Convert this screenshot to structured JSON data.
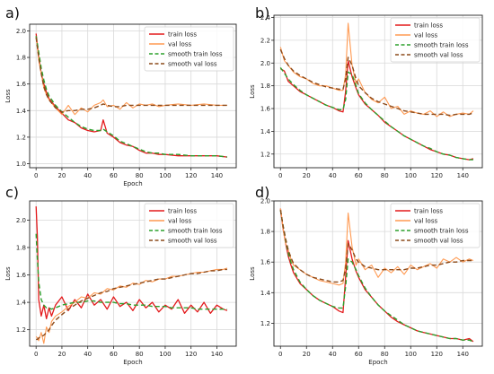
{
  "colors": {
    "train": "#e31a1c",
    "val": "#ff9a52",
    "smooth_train": "#2ca02c",
    "smooth_val": "#8c4a1a",
    "grid": "#d9d9d9",
    "axis": "#222222"
  },
  "chart_data": [
    {
      "type": "line",
      "panel_label": "a)",
      "title": "",
      "xlabel": "Epoch",
      "ylabel": "Loss",
      "xlim": [
        -5,
        155
      ],
      "ylim": [
        0.97,
        2.05
      ],
      "xticks": [
        "0",
        "20",
        "40",
        "60",
        "80",
        "100",
        "120",
        "140"
      ],
      "yticks": [
        "1.0",
        "1.2",
        "1.4",
        "1.6",
        "1.8",
        "2.0"
      ],
      "grid": true,
      "legend_position": "top-right",
      "legend": [
        "train loss",
        "val loss",
        "smooth train loss",
        "smooth val loss"
      ],
      "x": [
        0,
        2,
        4,
        6,
        8,
        10,
        15,
        20,
        25,
        30,
        35,
        40,
        45,
        50,
        52,
        55,
        60,
        65,
        70,
        75,
        80,
        85,
        90,
        95,
        100,
        110,
        120,
        130,
        140,
        148
      ],
      "series": [
        {
          "name": "train loss",
          "style": "solid",
          "values": [
            1.98,
            1.8,
            1.68,
            1.6,
            1.54,
            1.49,
            1.43,
            1.38,
            1.33,
            1.31,
            1.27,
            1.25,
            1.24,
            1.25,
            1.33,
            1.23,
            1.2,
            1.16,
            1.14,
            1.13,
            1.1,
            1.08,
            1.08,
            1.07,
            1.07,
            1.06,
            1.06,
            1.06,
            1.06,
            1.05
          ]
        },
        {
          "name": "val loss",
          "style": "solid",
          "values": [
            1.96,
            1.78,
            1.68,
            1.57,
            1.52,
            1.48,
            1.42,
            1.37,
            1.44,
            1.37,
            1.42,
            1.39,
            1.44,
            1.46,
            1.48,
            1.43,
            1.44,
            1.41,
            1.46,
            1.42,
            1.45,
            1.44,
            1.45,
            1.43,
            1.44,
            1.45,
            1.44,
            1.45,
            1.44,
            1.44
          ]
        },
        {
          "name": "smooth train loss",
          "style": "dashed",
          "values": [
            1.96,
            1.84,
            1.72,
            1.63,
            1.56,
            1.51,
            1.44,
            1.39,
            1.35,
            1.31,
            1.28,
            1.26,
            1.25,
            1.25,
            1.26,
            1.24,
            1.21,
            1.17,
            1.15,
            1.13,
            1.11,
            1.09,
            1.08,
            1.08,
            1.07,
            1.07,
            1.06,
            1.06,
            1.06,
            1.05
          ]
        },
        {
          "name": "smooth val loss",
          "style": "dashed",
          "values": [
            1.95,
            1.8,
            1.68,
            1.58,
            1.52,
            1.48,
            1.42,
            1.39,
            1.4,
            1.4,
            1.41,
            1.41,
            1.42,
            1.44,
            1.45,
            1.44,
            1.43,
            1.43,
            1.44,
            1.44,
            1.44,
            1.44,
            1.44,
            1.44,
            1.44,
            1.44,
            1.44,
            1.44,
            1.44,
            1.44
          ]
        }
      ]
    },
    {
      "type": "line",
      "panel_label": "b)",
      "title": "",
      "xlabel": "",
      "ylabel": "Loss",
      "xlim": [
        -5,
        155
      ],
      "ylim": [
        1.08,
        2.42
      ],
      "xticks": [
        "0",
        "20",
        "40",
        "60",
        "80",
        "100",
        "120",
        "140"
      ],
      "yticks": [
        "1.2",
        "1.4",
        "1.6",
        "1.8",
        "2.0",
        "2.2",
        "2.4"
      ],
      "grid": true,
      "legend_position": "top-right",
      "legend": [
        "train loss",
        "val loss",
        "smooth train loss",
        "smooth val loss"
      ],
      "x": [
        0,
        3,
        6,
        10,
        15,
        20,
        25,
        30,
        35,
        40,
        45,
        48,
        50,
        52,
        55,
        58,
        60,
        65,
        70,
        75,
        80,
        85,
        90,
        95,
        100,
        105,
        110,
        115,
        120,
        125,
        130,
        135,
        140,
        145,
        148
      ],
      "series": [
        {
          "name": "train loss",
          "style": "solid",
          "values": [
            1.95,
            1.93,
            1.84,
            1.8,
            1.75,
            1.72,
            1.69,
            1.66,
            1.63,
            1.61,
            1.58,
            1.57,
            1.75,
            2.02,
            1.88,
            1.78,
            1.72,
            1.64,
            1.59,
            1.54,
            1.48,
            1.44,
            1.4,
            1.36,
            1.33,
            1.3,
            1.27,
            1.24,
            1.22,
            1.2,
            1.19,
            1.17,
            1.16,
            1.15,
            1.16
          ]
        },
        {
          "name": "val loss",
          "style": "solid",
          "values": [
            2.14,
            2.02,
            1.98,
            1.92,
            1.88,
            1.86,
            1.82,
            1.8,
            1.8,
            1.78,
            1.76,
            1.76,
            1.9,
            2.35,
            1.98,
            1.82,
            1.86,
            1.74,
            1.68,
            1.65,
            1.7,
            1.6,
            1.62,
            1.55,
            1.58,
            1.56,
            1.55,
            1.58,
            1.53,
            1.57,
            1.53,
            1.55,
            1.56,
            1.55,
            1.58
          ]
        },
        {
          "name": "smooth train loss",
          "style": "dashed",
          "values": [
            1.96,
            1.91,
            1.86,
            1.81,
            1.76,
            1.72,
            1.69,
            1.66,
            1.63,
            1.61,
            1.59,
            1.59,
            1.68,
            1.92,
            1.9,
            1.8,
            1.73,
            1.65,
            1.59,
            1.54,
            1.49,
            1.44,
            1.4,
            1.36,
            1.33,
            1.3,
            1.27,
            1.25,
            1.22,
            1.2,
            1.19,
            1.17,
            1.16,
            1.15,
            1.15
          ]
        },
        {
          "name": "smooth val loss",
          "style": "dashed",
          "values": [
            2.12,
            2.04,
            1.98,
            1.93,
            1.89,
            1.86,
            1.83,
            1.81,
            1.79,
            1.78,
            1.77,
            1.77,
            1.86,
            2.05,
            1.98,
            1.86,
            1.8,
            1.74,
            1.69,
            1.66,
            1.64,
            1.62,
            1.6,
            1.58,
            1.57,
            1.56,
            1.55,
            1.55,
            1.55,
            1.55,
            1.54,
            1.55,
            1.55,
            1.55,
            1.56
          ]
        }
      ]
    },
    {
      "type": "line",
      "panel_label": "c)",
      "title": "",
      "xlabel": "Epoch",
      "ylabel": "Loss",
      "xlim": [
        -5,
        155
      ],
      "ylim": [
        1.08,
        2.14
      ],
      "xticks": [
        "0",
        "20",
        "40",
        "60",
        "80",
        "100",
        "120",
        "140"
      ],
      "yticks": [
        "1.2",
        "1.4",
        "1.6",
        "1.8",
        "2.0"
      ],
      "grid": true,
      "legend_position": "top-right",
      "legend": [
        "train loss",
        "val loss",
        "smooth train loss",
        "smooth val loss"
      ],
      "x": [
        0,
        1,
        2,
        4,
        6,
        8,
        10,
        12,
        15,
        20,
        25,
        30,
        35,
        40,
        45,
        50,
        55,
        60,
        65,
        70,
        75,
        80,
        85,
        90,
        95,
        100,
        105,
        110,
        115,
        120,
        125,
        130,
        135,
        140,
        145,
        148
      ],
      "series": [
        {
          "name": "train loss",
          "style": "solid",
          "values": [
            2.1,
            1.88,
            1.42,
            1.3,
            1.38,
            1.28,
            1.36,
            1.3,
            1.38,
            1.44,
            1.34,
            1.42,
            1.36,
            1.46,
            1.38,
            1.42,
            1.35,
            1.44,
            1.37,
            1.4,
            1.34,
            1.42,
            1.36,
            1.4,
            1.33,
            1.38,
            1.35,
            1.42,
            1.32,
            1.38,
            1.33,
            1.4,
            1.32,
            1.38,
            1.35,
            1.34
          ]
        },
        {
          "name": "val loss",
          "style": "solid",
          "values": [
            1.15,
            1.14,
            1.12,
            1.18,
            1.1,
            1.22,
            1.18,
            1.26,
            1.3,
            1.33,
            1.37,
            1.4,
            1.44,
            1.43,
            1.47,
            1.46,
            1.5,
            1.49,
            1.52,
            1.51,
            1.54,
            1.53,
            1.56,
            1.55,
            1.57,
            1.57,
            1.59,
            1.59,
            1.6,
            1.61,
            1.62,
            1.62,
            1.63,
            1.64,
            1.64,
            1.65
          ]
        },
        {
          "name": "smooth train loss",
          "style": "dashed",
          "values": [
            1.9,
            1.72,
            1.55,
            1.42,
            1.38,
            1.36,
            1.36,
            1.35,
            1.36,
            1.38,
            1.39,
            1.4,
            1.4,
            1.41,
            1.41,
            1.4,
            1.4,
            1.4,
            1.39,
            1.39,
            1.38,
            1.38,
            1.38,
            1.37,
            1.37,
            1.37,
            1.36,
            1.36,
            1.36,
            1.36,
            1.35,
            1.35,
            1.35,
            1.35,
            1.35,
            1.35
          ]
        },
        {
          "name": "smooth val loss",
          "style": "dashed",
          "values": [
            1.13,
            1.13,
            1.14,
            1.15,
            1.16,
            1.18,
            1.2,
            1.23,
            1.27,
            1.31,
            1.35,
            1.38,
            1.41,
            1.43,
            1.45,
            1.47,
            1.48,
            1.5,
            1.51,
            1.52,
            1.53,
            1.54,
            1.55,
            1.56,
            1.57,
            1.57,
            1.58,
            1.59,
            1.6,
            1.61,
            1.61,
            1.62,
            1.63,
            1.63,
            1.64,
            1.64
          ]
        }
      ]
    },
    {
      "type": "line",
      "panel_label": "d)",
      "title": "",
      "xlabel": "Epoch",
      "ylabel": "Loss",
      "xlim": [
        -5,
        155
      ],
      "ylim": [
        1.05,
        2.0
      ],
      "xticks": [
        "0",
        "20",
        "40",
        "60",
        "80",
        "100",
        "120",
        "140"
      ],
      "yticks": [
        "1.2",
        "1.4",
        "1.6",
        "1.8",
        "2.0"
      ],
      "grid": true,
      "legend_position": "top-right",
      "legend": [
        "train loss",
        "val loss",
        "smooth train loss",
        "smooth val loss"
      ],
      "x": [
        0,
        2,
        4,
        6,
        8,
        10,
        15,
        20,
        25,
        30,
        35,
        40,
        45,
        48,
        50,
        52,
        55,
        58,
        60,
        65,
        70,
        75,
        80,
        85,
        90,
        95,
        100,
        105,
        110,
        115,
        120,
        125,
        130,
        135,
        140,
        145,
        148
      ],
      "series": [
        {
          "name": "train loss",
          "style": "solid",
          "values": [
            1.95,
            1.82,
            1.72,
            1.64,
            1.58,
            1.53,
            1.46,
            1.42,
            1.38,
            1.35,
            1.33,
            1.31,
            1.28,
            1.27,
            1.5,
            1.74,
            1.62,
            1.54,
            1.5,
            1.42,
            1.37,
            1.32,
            1.28,
            1.24,
            1.21,
            1.19,
            1.17,
            1.15,
            1.14,
            1.13,
            1.12,
            1.11,
            1.1,
            1.1,
            1.09,
            1.1,
            1.08
          ]
        },
        {
          "name": "val loss",
          "style": "solid",
          "values": [
            1.95,
            1.82,
            1.72,
            1.68,
            1.62,
            1.58,
            1.55,
            1.52,
            1.5,
            1.48,
            1.47,
            1.46,
            1.45,
            1.46,
            1.6,
            1.92,
            1.7,
            1.58,
            1.62,
            1.55,
            1.58,
            1.5,
            1.56,
            1.53,
            1.57,
            1.52,
            1.58,
            1.55,
            1.57,
            1.59,
            1.56,
            1.62,
            1.6,
            1.63,
            1.6,
            1.62,
            1.61
          ]
        },
        {
          "name": "smooth train loss",
          "style": "dashed",
          "values": [
            1.94,
            1.84,
            1.74,
            1.66,
            1.6,
            1.55,
            1.47,
            1.42,
            1.38,
            1.35,
            1.33,
            1.31,
            1.3,
            1.3,
            1.44,
            1.62,
            1.6,
            1.55,
            1.51,
            1.43,
            1.37,
            1.32,
            1.28,
            1.25,
            1.22,
            1.19,
            1.17,
            1.15,
            1.14,
            1.13,
            1.12,
            1.11,
            1.1,
            1.1,
            1.09,
            1.09,
            1.08
          ]
        },
        {
          "name": "smooth val loss",
          "style": "dashed",
          "values": [
            1.94,
            1.84,
            1.75,
            1.68,
            1.63,
            1.59,
            1.55,
            1.52,
            1.5,
            1.49,
            1.48,
            1.47,
            1.47,
            1.48,
            1.56,
            1.72,
            1.68,
            1.62,
            1.6,
            1.57,
            1.56,
            1.55,
            1.55,
            1.55,
            1.55,
            1.55,
            1.56,
            1.56,
            1.57,
            1.58,
            1.58,
            1.59,
            1.6,
            1.6,
            1.61,
            1.61,
            1.61
          ]
        }
      ]
    }
  ]
}
